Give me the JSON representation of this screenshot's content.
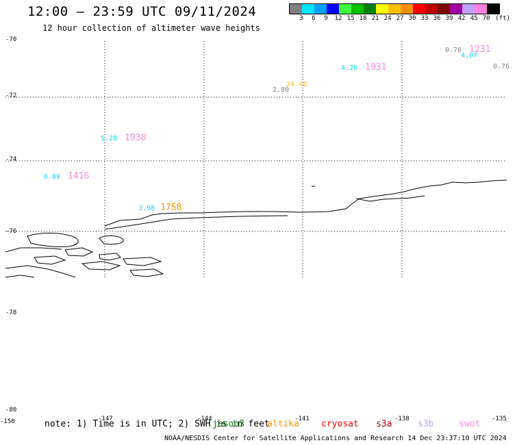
{
  "header": {
    "title": "12:00 – 23:59 UTC 09/11/2024",
    "subtitle": "12 hour collection of altimeter wave heights"
  },
  "color_scale": {
    "unit": "(ft)",
    "ticks": [
      "3",
      "6",
      "9",
      "12",
      "15",
      "18",
      "21",
      "24",
      "27",
      "30",
      "33",
      "36",
      "39",
      "42",
      "45",
      "70"
    ],
    "colors": [
      "#808080",
      "#00e5ff",
      "#00a0ff",
      "#0000ff",
      "#40ff40",
      "#00c000",
      "#008000",
      "#ffff00",
      "#ffc000",
      "#ff9000",
      "#ff0000",
      "#c00000",
      "#800000",
      "#a000a0",
      "#c0a0ff",
      "#ff80e0",
      "#000000"
    ]
  },
  "axes": {
    "lat_labels": [
      "-70",
      "-72",
      "-74",
      "-76",
      "-78",
      "-80"
    ],
    "lon_labels": [
      "-150",
      "-147",
      "-144",
      "-141",
      "-138",
      "-135"
    ]
  },
  "observations": [
    {
      "swh": "5.28",
      "swh_color": "#00d8ff",
      "time": "1930",
      "time_color": "#ff88dd"
    },
    {
      "swh": "6.89",
      "swh_color": "#00d8ff",
      "time": "1416",
      "time_color": "#ff88dd"
    },
    {
      "swh": "3.98",
      "swh_color": "#00d8ff",
      "time": "1758",
      "time_color": "#ff9000"
    },
    {
      "swh": "2.80",
      "swh_color": "#808080",
      "time": "",
      "time_color": "#808080"
    },
    {
      "swh": "24.48",
      "swh_color": "#ffc000",
      "time": "",
      "time_color": "#ffc000"
    },
    {
      "swh": "4.26",
      "swh_color": "#00d8ff",
      "time": "1931",
      "time_color": "#ff88dd"
    },
    {
      "swh": "0.76",
      "swh_color": "#808080",
      "time": "1231",
      "time_color": "#ff88dd"
    },
    {
      "swh": "4.07",
      "swh_color": "#00d8ff",
      "time": "",
      "time_color": "#00d8ff"
    },
    {
      "swh": "0.76",
      "swh_color": "#808080",
      "time": "",
      "time_color": "#808080"
    }
  ],
  "footer": {
    "note": "note: 1) Time is in UTC; 2) SWH is in feet",
    "satellites": [
      {
        "name": "jason3",
        "color": "#008000"
      },
      {
        "name": "altika",
        "color": "#ff9000"
      },
      {
        "name": "cryosat",
        "color": "#ff0000"
      },
      {
        "name": "s3a",
        "color": "#a00000"
      },
      {
        "name": "s3b",
        "color": "#c0a0ff"
      },
      {
        "name": "swot",
        "color": "#ff88dd"
      }
    ],
    "credit": "NOAA/NESDIS Center for Satellite Applications and Research    14 Dec 23:37:10 UTC 2024"
  }
}
